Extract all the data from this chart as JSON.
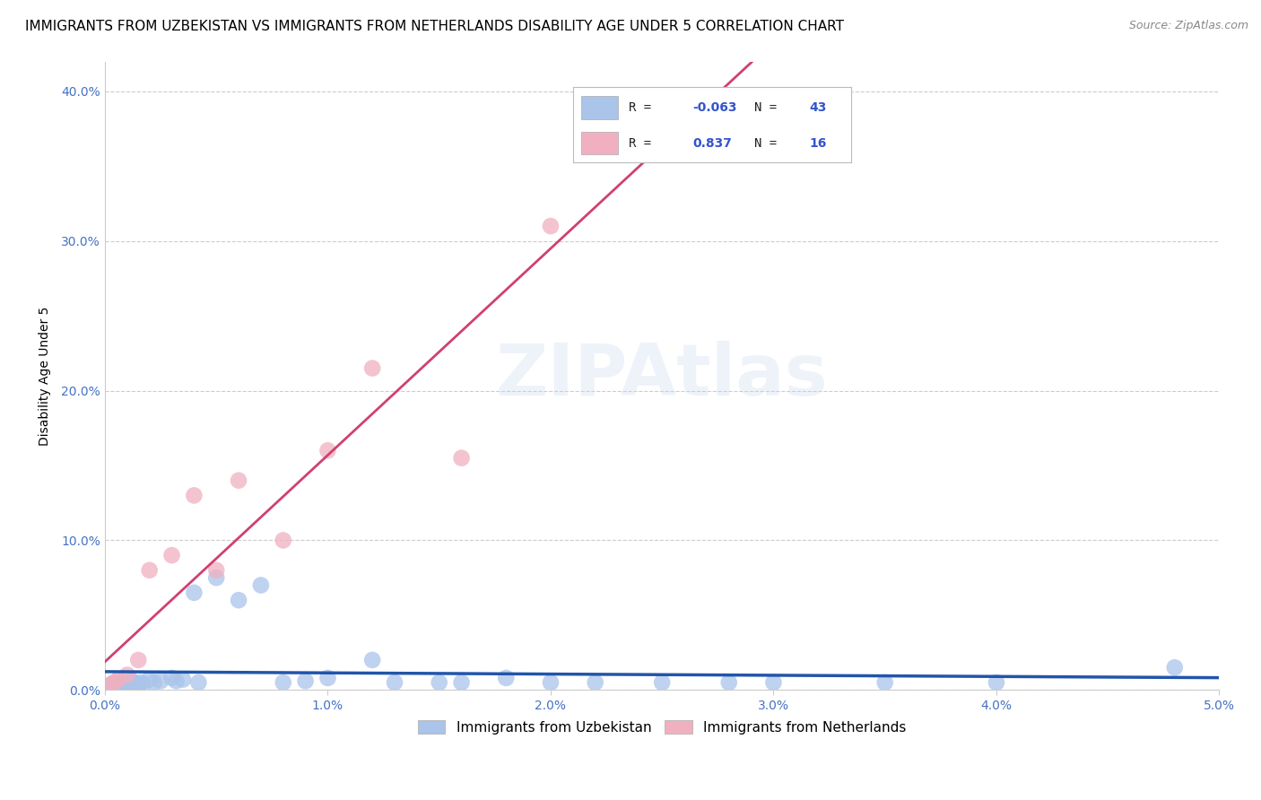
{
  "title": "IMMIGRANTS FROM UZBEKISTAN VS IMMIGRANTS FROM NETHERLANDS DISABILITY AGE UNDER 5 CORRELATION CHART",
  "source": "Source: ZipAtlas.com",
  "xlabel_uzbekistan": "Immigrants from Uzbekistan",
  "xlabel_netherlands": "Immigrants from Netherlands",
  "ylabel": "Disability Age Under 5",
  "watermark": "ZIPAtlas",
  "r_uzbekistan": -0.063,
  "n_uzbekistan": 43,
  "r_netherlands": 0.837,
  "n_netherlands": 16,
  "color_uzbekistan": "#aac4ea",
  "color_netherlands": "#f0b0c0",
  "line_color_uzbekistan": "#2255aa",
  "line_color_netherlands": "#d04070",
  "xlim": [
    0.0,
    0.05
  ],
  "ylim": [
    0.0,
    0.42
  ],
  "xticks": [
    0.0,
    0.01,
    0.02,
    0.03,
    0.04,
    0.05
  ],
  "yticks": [
    0.0,
    0.1,
    0.2,
    0.3,
    0.4
  ],
  "uzbekistan_x": [
    0.0002,
    0.0003,
    0.0004,
    0.0005,
    0.0006,
    0.0007,
    0.0008,
    0.0009,
    0.001,
    0.0011,
    0.0012,
    0.0013,
    0.0014,
    0.0015,
    0.0016,
    0.0017,
    0.002,
    0.0022,
    0.0025,
    0.003,
    0.0032,
    0.0035,
    0.004,
    0.0042,
    0.005,
    0.006,
    0.007,
    0.008,
    0.009,
    0.01,
    0.012,
    0.013,
    0.015,
    0.016,
    0.018,
    0.02,
    0.022,
    0.025,
    0.028,
    0.03,
    0.035,
    0.04,
    0.048
  ],
  "uzbekistan_y": [
    0.003,
    0.004,
    0.003,
    0.005,
    0.004,
    0.005,
    0.003,
    0.004,
    0.005,
    0.004,
    0.006,
    0.005,
    0.004,
    0.003,
    0.005,
    0.004,
    0.007,
    0.005,
    0.006,
    0.008,
    0.006,
    0.007,
    0.065,
    0.005,
    0.075,
    0.06,
    0.07,
    0.005,
    0.006,
    0.008,
    0.02,
    0.005,
    0.005,
    0.005,
    0.008,
    0.005,
    0.005,
    0.005,
    0.005,
    0.005,
    0.005,
    0.005,
    0.015
  ],
  "netherlands_x": [
    0.0002,
    0.0004,
    0.0006,
    0.001,
    0.0015,
    0.002,
    0.003,
    0.004,
    0.005,
    0.006,
    0.008,
    0.01,
    0.012,
    0.016,
    0.02,
    0.025
  ],
  "netherlands_y": [
    0.003,
    0.005,
    0.007,
    0.01,
    0.02,
    0.08,
    0.09,
    0.13,
    0.08,
    0.14,
    0.1,
    0.16,
    0.215,
    0.155,
    0.31,
    0.38
  ],
  "title_fontsize": 11,
  "axis_label_fontsize": 10,
  "tick_fontsize": 10,
  "legend_fontsize": 11
}
